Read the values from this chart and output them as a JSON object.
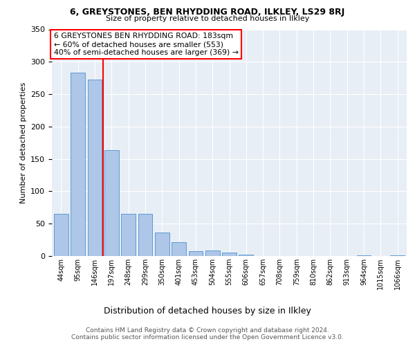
{
  "title": "6, GREYSTONES, BEN RHYDDING ROAD, ILKLEY, LS29 8RJ",
  "subtitle": "Size of property relative to detached houses in Ilkley",
  "xlabel": "Distribution of detached houses by size in Ilkley",
  "ylabel": "Number of detached properties",
  "categories": [
    "44sqm",
    "95sqm",
    "146sqm",
    "197sqm",
    "248sqm",
    "299sqm",
    "350sqm",
    "401sqm",
    "453sqm",
    "504sqm",
    "555sqm",
    "606sqm",
    "657sqm",
    "708sqm",
    "759sqm",
    "810sqm",
    "862sqm",
    "913sqm",
    "964sqm",
    "1015sqm",
    "1066sqm"
  ],
  "values": [
    65,
    283,
    273,
    163,
    65,
    65,
    36,
    21,
    8,
    9,
    5,
    2,
    0,
    0,
    0,
    0,
    0,
    0,
    1,
    0,
    1
  ],
  "bar_color": "#aec6e8",
  "bar_edge_color": "#5b9bd5",
  "bg_color": "#e8eef5",
  "redline_x": 2.5,
  "annotation_text": "6 GREYSTONES BEN RHYDDING ROAD: 183sqm\n← 60% of detached houses are smaller (553)\n40% of semi-detached houses are larger (369) →",
  "footer": "Contains HM Land Registry data © Crown copyright and database right 2024.\nContains public sector information licensed under the Open Government Licence v3.0.",
  "ylim": [
    0,
    350
  ],
  "yticks": [
    0,
    50,
    100,
    150,
    200,
    250,
    300,
    350
  ]
}
